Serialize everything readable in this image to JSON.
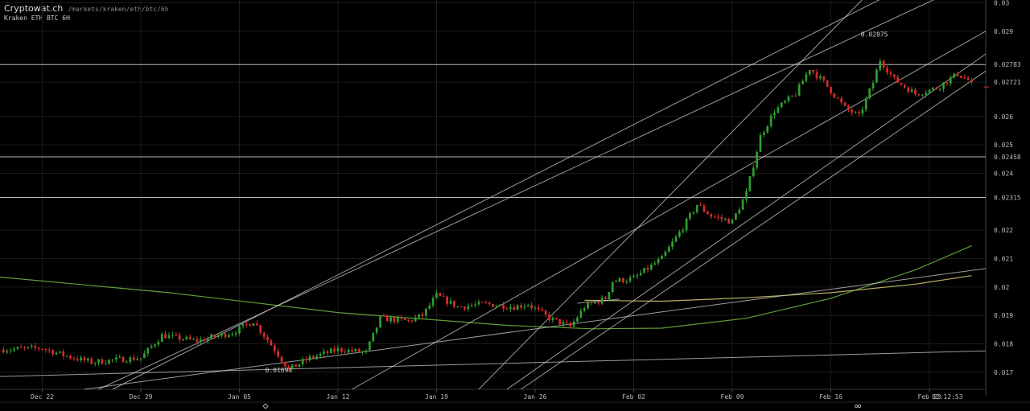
{
  "header": {
    "site": "Cryptowat.ch",
    "path": "/markets/kraken/eth/btc/6h",
    "subtitle": "Kraken ETH BTC 6H"
  },
  "colors": {
    "background": "#000000",
    "up": "#2f9e2f",
    "down": "#d62b2b",
    "grid": "#1c1c1c",
    "trendline": "#cfcfcf",
    "ma_green": "#5f9e3a",
    "ma_yellow": "#b8b060"
  },
  "bottom_markers": [
    "diamond-icon",
    "double-circle-icon"
  ],
  "chart_data": {
    "type": "candlestick",
    "title": "Kraken ETH BTC 6H",
    "x_tick_labels": [
      "Dec 22",
      "Dec 29",
      "Jan 05",
      "Jan 12",
      "Jan 19",
      "Jan 26",
      "Feb 02",
      "Feb 09",
      "Feb 16",
      "Feb 23"
    ],
    "time_label": "02:12:53",
    "y_tick_labels": [
      "0.03",
      "0.029",
      "0.02783",
      "0.02721",
      "0.026",
      "0.025",
      "0.02458",
      "0.024",
      "0.02315",
      "0.022",
      "0.021",
      "0.02",
      "0.019",
      "0.018",
      "0.017"
    ],
    "ylim": [
      0.0164,
      0.0301
    ],
    "xlim_days": [
      -3,
      67
    ],
    "last_price": 0.02721,
    "horizontal_levels": [
      0.02783,
      0.02458,
      0.02315
    ],
    "annotations": [
      {
        "text": "0.02875",
        "day": 59.5,
        "value": 0.02875
      },
      {
        "text": "0.01694",
        "day": 17.2,
        "value": 0.01694
      }
    ],
    "anchors": [
      {
        "day": -3,
        "value": 0.0178
      },
      {
        "day": 0,
        "value": 0.01785
      },
      {
        "day": 1.5,
        "value": 0.0176
      },
      {
        "day": 3.5,
        "value": 0.01735
      },
      {
        "day": 5.5,
        "value": 0.01745
      },
      {
        "day": 7,
        "value": 0.0175
      },
      {
        "day": 8.5,
        "value": 0.0183
      },
      {
        "day": 11,
        "value": 0.0181
      },
      {
        "day": 13.5,
        "value": 0.0184
      },
      {
        "day": 15,
        "value": 0.0188
      },
      {
        "day": 16.5,
        "value": 0.0178
      },
      {
        "day": 17.5,
        "value": 0.0171
      },
      {
        "day": 19,
        "value": 0.0175
      },
      {
        "day": 21,
        "value": 0.0178
      },
      {
        "day": 23,
        "value": 0.0177
      },
      {
        "day": 24,
        "value": 0.0189
      },
      {
        "day": 26,
        "value": 0.0188
      },
      {
        "day": 27,
        "value": 0.019
      },
      {
        "day": 28,
        "value": 0.0197
      },
      {
        "day": 29.5,
        "value": 0.0193
      },
      {
        "day": 31.5,
        "value": 0.0194
      },
      {
        "day": 33.5,
        "value": 0.0193
      },
      {
        "day": 34.5,
        "value": 0.0194
      },
      {
        "day": 36,
        "value": 0.0189
      },
      {
        "day": 37.5,
        "value": 0.0186
      },
      {
        "day": 38.5,
        "value": 0.0193
      },
      {
        "day": 40,
        "value": 0.0196
      },
      {
        "day": 40.5,
        "value": 0.0202
      },
      {
        "day": 42,
        "value": 0.0203
      },
      {
        "day": 44,
        "value": 0.021
      },
      {
        "day": 45.5,
        "value": 0.0221
      },
      {
        "day": 46.5,
        "value": 0.0229
      },
      {
        "day": 47.5,
        "value": 0.0225
      },
      {
        "day": 49,
        "value": 0.0223
      },
      {
        "day": 50,
        "value": 0.0233
      },
      {
        "day": 51,
        "value": 0.0253
      },
      {
        "day": 52,
        "value": 0.0262
      },
      {
        "day": 53.5,
        "value": 0.0268
      },
      {
        "day": 54.5,
        "value": 0.0277
      },
      {
        "day": 55.5,
        "value": 0.0272
      },
      {
        "day": 57,
        "value": 0.0263
      },
      {
        "day": 58,
        "value": 0.026
      },
      {
        "day": 59,
        "value": 0.0272
      },
      {
        "day": 59.5,
        "value": 0.028
      },
      {
        "day": 60.5,
        "value": 0.0273
      },
      {
        "day": 62,
        "value": 0.0268
      },
      {
        "day": 63.5,
        "value": 0.027
      },
      {
        "day": 65,
        "value": 0.0275
      },
      {
        "day": 66,
        "value": 0.02721
      }
    ],
    "moving_averages": [
      {
        "color": "#5f9e3a",
        "points": [
          {
            "day": -3,
            "value": 0.02035
          },
          {
            "day": 9,
            "value": 0.0198
          },
          {
            "day": 21,
            "value": 0.0191
          },
          {
            "day": 33,
            "value": 0.01865
          },
          {
            "day": 39,
            "value": 0.01853
          },
          {
            "day": 44,
            "value": 0.01855
          },
          {
            "day": 50,
            "value": 0.0189
          },
          {
            "day": 56,
            "value": 0.0196
          },
          {
            "day": 62,
            "value": 0.0206
          },
          {
            "day": 66,
            "value": 0.02145
          }
        ]
      },
      {
        "color": "#b8b060",
        "points": [
          {
            "day": 38.5,
            "value": 0.01953
          },
          {
            "day": 44,
            "value": 0.0195
          },
          {
            "day": 50,
            "value": 0.01962
          },
          {
            "day": 56,
            "value": 0.0198
          },
          {
            "day": 62,
            "value": 0.0201
          },
          {
            "day": 66,
            "value": 0.0204
          }
        ]
      }
    ],
    "trendlines": [
      {
        "from": {
          "day": -3,
          "value": 0.01685
        },
        "to": {
          "day": 67,
          "value": 0.01775
        }
      },
      {
        "from": {
          "day": 3,
          "value": 0.0164
        },
        "to": {
          "day": 67,
          "value": 0.02065
        }
      },
      {
        "from": {
          "day": 4,
          "value": 0.0164
        },
        "to": {
          "day": 65,
          "value": 0.0305
        }
      },
      {
        "from": {
          "day": 5,
          "value": 0.0164
        },
        "to": {
          "day": 61,
          "value": 0.0305
        }
      },
      {
        "from": {
          "day": 22,
          "value": 0.0164
        },
        "to": {
          "day": 67,
          "value": 0.029
        }
      },
      {
        "from": {
          "day": 31,
          "value": 0.0164
        },
        "to": {
          "day": 59,
          "value": 0.0305
        }
      },
      {
        "from": {
          "day": 33,
          "value": 0.0164
        },
        "to": {
          "day": 67,
          "value": 0.0282
        }
      },
      {
        "from": {
          "day": 34,
          "value": 0.0164
        },
        "to": {
          "day": 67,
          "value": 0.0276
        }
      },
      {
        "from": {
          "day": 38,
          "value": 0.01943
        },
        "to": {
          "day": 41,
          "value": 0.01957
        }
      }
    ]
  }
}
